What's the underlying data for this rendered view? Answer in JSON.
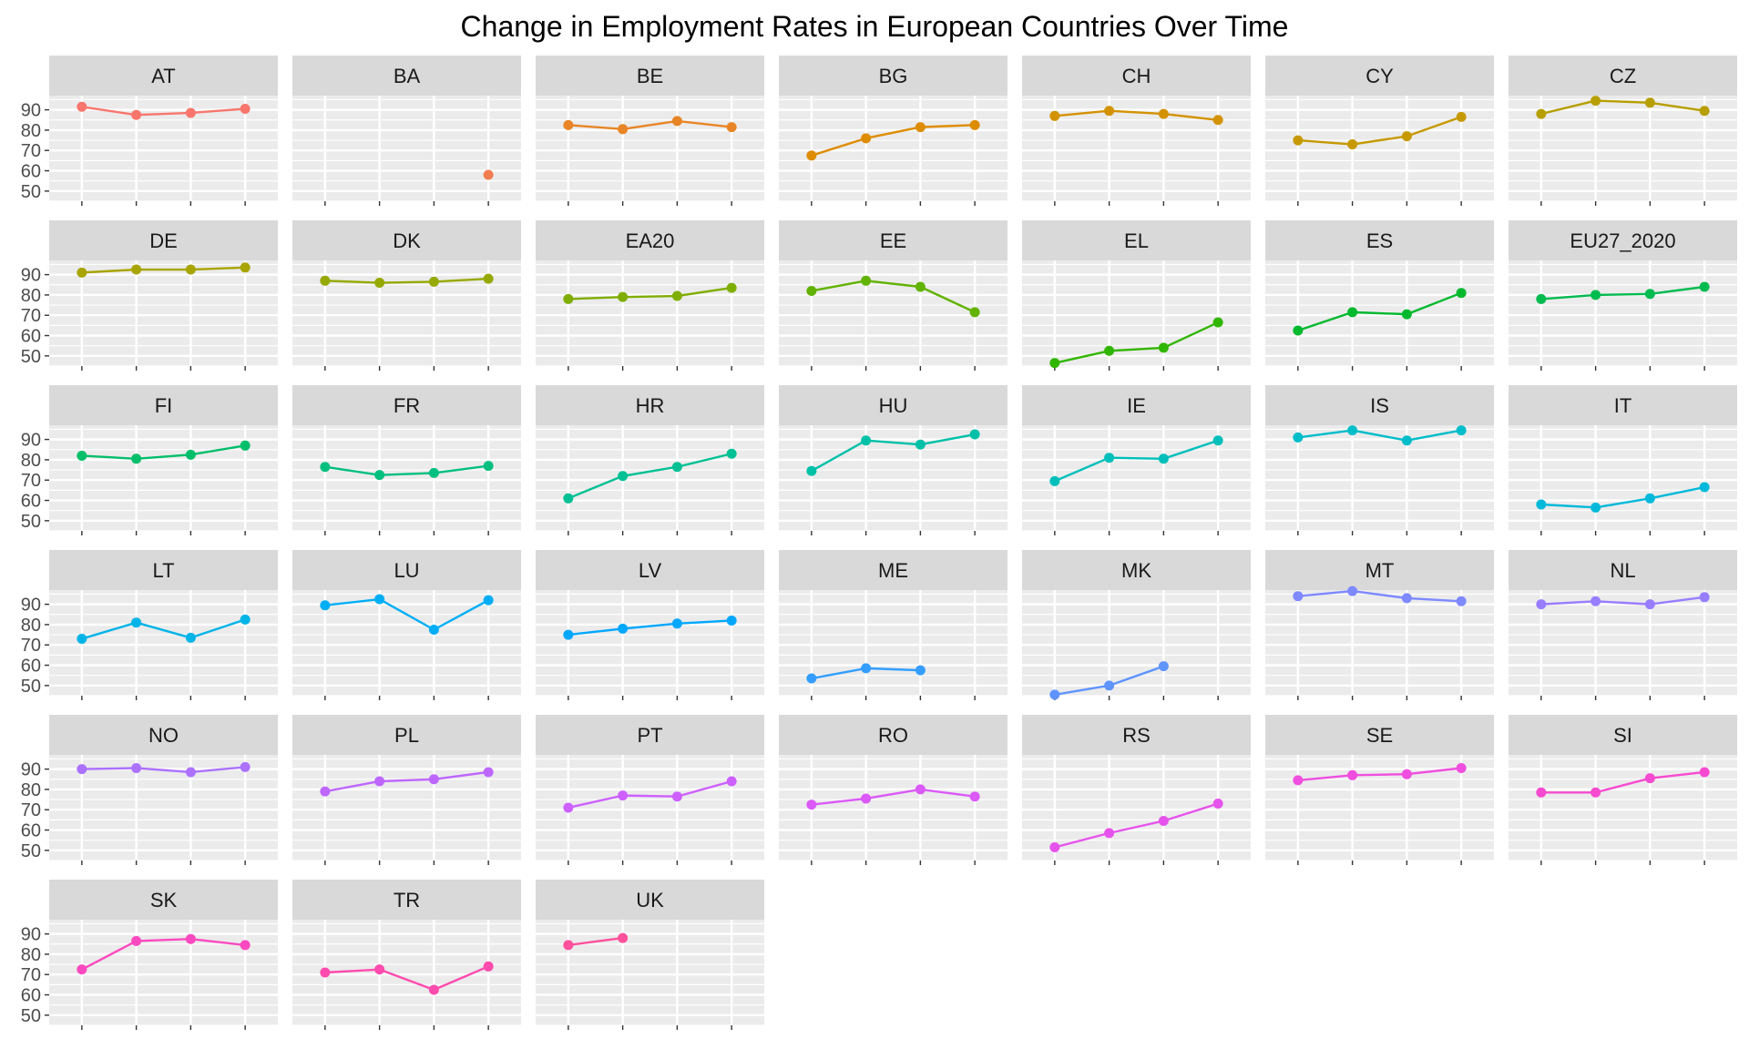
{
  "chart_data": {
    "type": "line",
    "title": "Change in Employment Rates in European Countries Over Time",
    "xlabel": "",
    "ylabel": "",
    "ylim": [
      45,
      97
    ],
    "yticks": [
      50,
      60,
      70,
      80,
      90
    ],
    "grid": true,
    "legend": "none",
    "x_points": 4,
    "facets": [
      {
        "name": "AT",
        "color": "#F8766D",
        "values": [
          91.5,
          87.5,
          88.5,
          90.5
        ]
      },
      {
        "name": "BA",
        "color": "#F17D50",
        "values": [
          null,
          null,
          null,
          58
        ]
      },
      {
        "name": "BE",
        "color": "#E88526",
        "values": [
          82.5,
          80.5,
          84.5,
          81.5
        ]
      },
      {
        "name": "BG",
        "color": "#DE8C00",
        "values": [
          67.5,
          76,
          81.5,
          82.5
        ]
      },
      {
        "name": "CH",
        "color": "#D39200",
        "values": [
          87,
          89.5,
          88,
          85
        ]
      },
      {
        "name": "CY",
        "color": "#C69900",
        "values": [
          75,
          73,
          77,
          86.5
        ]
      },
      {
        "name": "CZ",
        "color": "#B79F00",
        "values": [
          88,
          94.5,
          93.5,
          89.5
        ]
      },
      {
        "name": "DE",
        "color": "#A8A400",
        "values": [
          91,
          92.5,
          92.5,
          93.5
        ]
      },
      {
        "name": "DK",
        "color": "#96A900",
        "values": [
          87,
          86,
          86.5,
          88
        ]
      },
      {
        "name": "EA20",
        "color": "#7FAE00",
        "values": [
          78,
          79,
          79.5,
          83.5
        ]
      },
      {
        "name": "EE",
        "color": "#62B200",
        "values": [
          82,
          87,
          84,
          71.5
        ]
      },
      {
        "name": "EL",
        "color": "#31B600",
        "values": [
          46.5,
          52.5,
          54,
          66.5
        ]
      },
      {
        "name": "ES",
        "color": "#00B92D",
        "values": [
          62.5,
          71.5,
          70.5,
          81
        ]
      },
      {
        "name": "EU27_2020",
        "color": "#00BB4F",
        "values": [
          78,
          80,
          80.5,
          84
        ]
      },
      {
        "name": "FI",
        "color": "#00BE6A",
        "values": [
          82,
          80.5,
          82.5,
          87
        ]
      },
      {
        "name": "FR",
        "color": "#00BF7F",
        "values": [
          76.5,
          72.5,
          73.5,
          77
        ]
      },
      {
        "name": "HR",
        "color": "#00C094",
        "values": [
          61,
          72,
          76.5,
          83
        ]
      },
      {
        "name": "HU",
        "color": "#00C0A8",
        "values": [
          74.5,
          89.5,
          87.5,
          92.5
        ]
      },
      {
        "name": "IE",
        "color": "#00BFBA",
        "values": [
          69.5,
          81,
          80.5,
          89.5
        ]
      },
      {
        "name": "IS",
        "color": "#00BDCA",
        "values": [
          91,
          94.5,
          89.5,
          94.5
        ]
      },
      {
        "name": "IT",
        "color": "#00B9DA",
        "values": [
          58,
          56.5,
          61,
          66.5
        ]
      },
      {
        "name": "LT",
        "color": "#00B4E8",
        "values": [
          73,
          81,
          73.5,
          82.5
        ]
      },
      {
        "name": "LU",
        "color": "#00AEF5",
        "values": [
          89.5,
          92.5,
          77.5,
          92
        ]
      },
      {
        "name": "LV",
        "color": "#00A7FF",
        "values": [
          75,
          78,
          80.5,
          82
        ]
      },
      {
        "name": "ME",
        "color": "#339EFF",
        "values": [
          53.5,
          58.5,
          57.5,
          null
        ]
      },
      {
        "name": "MK",
        "color": "#5F94FF",
        "values": [
          45.5,
          50,
          59.5,
          null
        ]
      },
      {
        "name": "MT",
        "color": "#7E89FF",
        "values": [
          94,
          96.5,
          93,
          91.5
        ]
      },
      {
        "name": "NL",
        "color": "#977DFF",
        "values": [
          90,
          91.5,
          90,
          93.5
        ]
      },
      {
        "name": "NO",
        "color": "#AC72FF",
        "values": [
          90,
          90.5,
          88.5,
          91
        ]
      },
      {
        "name": "PL",
        "color": "#BE67FF",
        "values": [
          79,
          84,
          85,
          88.5
        ]
      },
      {
        "name": "PT",
        "color": "#CD60FF",
        "values": [
          71,
          77,
          76.5,
          84
        ]
      },
      {
        "name": "RO",
        "color": "#DB59F7",
        "values": [
          72.5,
          75.5,
          80,
          76.5
        ]
      },
      {
        "name": "RS",
        "color": "#E653EC",
        "values": [
          51.5,
          58.5,
          64.5,
          73
        ]
      },
      {
        "name": "SE",
        "color": "#EF4EDF",
        "values": [
          84.5,
          87,
          87.5,
          90.5
        ]
      },
      {
        "name": "SI",
        "color": "#F64AD0",
        "values": [
          78.5,
          78.5,
          85.5,
          88.5
        ]
      },
      {
        "name": "SK",
        "color": "#FB49BF",
        "values": [
          72.5,
          86.5,
          87.5,
          84.5
        ]
      },
      {
        "name": "TR",
        "color": "#FE4BAE",
        "values": [
          71,
          72.5,
          62.5,
          74
        ]
      },
      {
        "name": "UK",
        "color": "#FF509C",
        "values": [
          84.5,
          88,
          null,
          null
        ]
      }
    ]
  }
}
